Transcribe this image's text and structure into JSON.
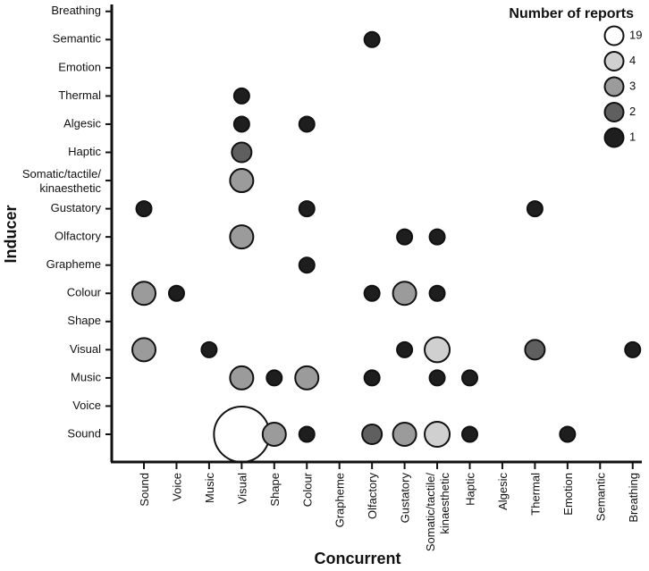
{
  "chart_data": {
    "type": "scatter",
    "subtype": "bubble",
    "xlabel": "Concurrent",
    "ylabel": "Inducer",
    "x_categories": [
      "Sound",
      "Voice",
      "Music",
      "Visual",
      "Shape",
      "Colour",
      "Grapheme",
      "Olfactory",
      "Gustatory",
      "Somatic/tactile/ kinaesthetic",
      "Haptic",
      "Algesic",
      "Thermal",
      "Emotion",
      "Semantic",
      "Breathing"
    ],
    "y_categories": [
      "Sound",
      "Voice",
      "Music",
      "Visual",
      "Shape",
      "Colour",
      "Grapheme",
      "Olfactory",
      "Gustatory",
      "Somatic/tactile/ kinaesthetic",
      "Haptic",
      "Algesic",
      "Thermal",
      "Emotion",
      "Semantic",
      "Breathing"
    ],
    "size_legend": {
      "title": "Number of reports",
      "entries": [
        {
          "value": 19,
          "color": "#ffffff"
        },
        {
          "value": 4,
          "color": "#d0d0d0"
        },
        {
          "value": 3,
          "color": "#9b9b9b"
        },
        {
          "value": 2,
          "color": "#5f5f5f"
        },
        {
          "value": 1,
          "color": "#1e1e1e"
        }
      ]
    },
    "points": [
      {
        "x": "Olfactory",
        "y": "Semantic",
        "reports": 1
      },
      {
        "x": "Visual",
        "y": "Thermal",
        "reports": 1
      },
      {
        "x": "Visual",
        "y": "Algesic",
        "reports": 1
      },
      {
        "x": "Colour",
        "y": "Algesic",
        "reports": 1
      },
      {
        "x": "Visual",
        "y": "Haptic",
        "reports": 2
      },
      {
        "x": "Visual",
        "y": "Somatic/tactile/ kinaesthetic",
        "reports": 3
      },
      {
        "x": "Sound",
        "y": "Gustatory",
        "reports": 1
      },
      {
        "x": "Colour",
        "y": "Gustatory",
        "reports": 1
      },
      {
        "x": "Thermal",
        "y": "Gustatory",
        "reports": 1
      },
      {
        "x": "Visual",
        "y": "Olfactory",
        "reports": 3
      },
      {
        "x": "Gustatory",
        "y": "Olfactory",
        "reports": 1
      },
      {
        "x": "Somatic/tactile/ kinaesthetic",
        "y": "Olfactory",
        "reports": 1
      },
      {
        "x": "Colour",
        "y": "Grapheme",
        "reports": 1
      },
      {
        "x": "Sound",
        "y": "Colour",
        "reports": 3
      },
      {
        "x": "Voice",
        "y": "Colour",
        "reports": 1
      },
      {
        "x": "Olfactory",
        "y": "Colour",
        "reports": 1
      },
      {
        "x": "Gustatory",
        "y": "Colour",
        "reports": 3
      },
      {
        "x": "Somatic/tactile/ kinaesthetic",
        "y": "Colour",
        "reports": 1
      },
      {
        "x": "Sound",
        "y": "Visual",
        "reports": 3
      },
      {
        "x": "Music",
        "y": "Visual",
        "reports": 1
      },
      {
        "x": "Gustatory",
        "y": "Visual",
        "reports": 1
      },
      {
        "x": "Somatic/tactile/ kinaesthetic",
        "y": "Visual",
        "reports": 4
      },
      {
        "x": "Thermal",
        "y": "Visual",
        "reports": 2
      },
      {
        "x": "Breathing",
        "y": "Visual",
        "reports": 1
      },
      {
        "x": "Visual",
        "y": "Music",
        "reports": 3
      },
      {
        "x": "Shape",
        "y": "Music",
        "reports": 1
      },
      {
        "x": "Colour",
        "y": "Music",
        "reports": 3
      },
      {
        "x": "Olfactory",
        "y": "Music",
        "reports": 1
      },
      {
        "x": "Somatic/tactile/ kinaesthetic",
        "y": "Music",
        "reports": 1
      },
      {
        "x": "Haptic",
        "y": "Music",
        "reports": 1
      },
      {
        "x": "Visual",
        "y": "Sound",
        "reports": 19
      },
      {
        "x": "Shape",
        "y": "Sound",
        "reports": 3
      },
      {
        "x": "Colour",
        "y": "Sound",
        "reports": 1
      },
      {
        "x": "Olfactory",
        "y": "Sound",
        "reports": 2
      },
      {
        "x": "Gustatory",
        "y": "Sound",
        "reports": 3
      },
      {
        "x": "Somatic/tactile/ kinaesthetic",
        "y": "Sound",
        "reports": 4
      },
      {
        "x": "Haptic",
        "y": "Sound",
        "reports": 1
      },
      {
        "x": "Emotion",
        "y": "Sound",
        "reports": 1
      }
    ]
  }
}
